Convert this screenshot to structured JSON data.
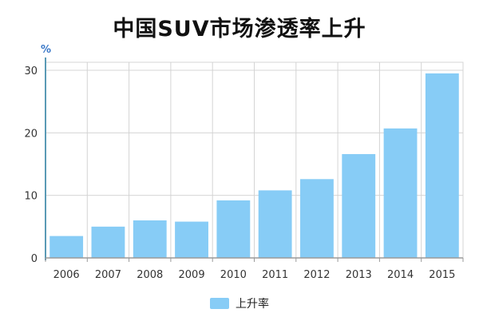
{
  "title": "中国SUV市场渗透率上升",
  "chart_data": {
    "type": "bar",
    "unit_label": "%",
    "categories": [
      "2006",
      "2007",
      "2008",
      "2009",
      "2010",
      "2011",
      "2012",
      "2013",
      "2014",
      "2015"
    ],
    "series": [
      {
        "name": "上升率",
        "values": [
          3.5,
          5.0,
          6.0,
          5.8,
          9.2,
          10.8,
          12.6,
          16.6,
          20.7,
          29.5
        ]
      }
    ],
    "ylim": [
      0,
      30
    ],
    "yticks": [
      0,
      10,
      20,
      30
    ],
    "grid": true,
    "legend_position": "bottom",
    "bar_color": "#87ccf6",
    "grid_color": "#d4d4d4",
    "axis_color": "#5a9ab5"
  }
}
